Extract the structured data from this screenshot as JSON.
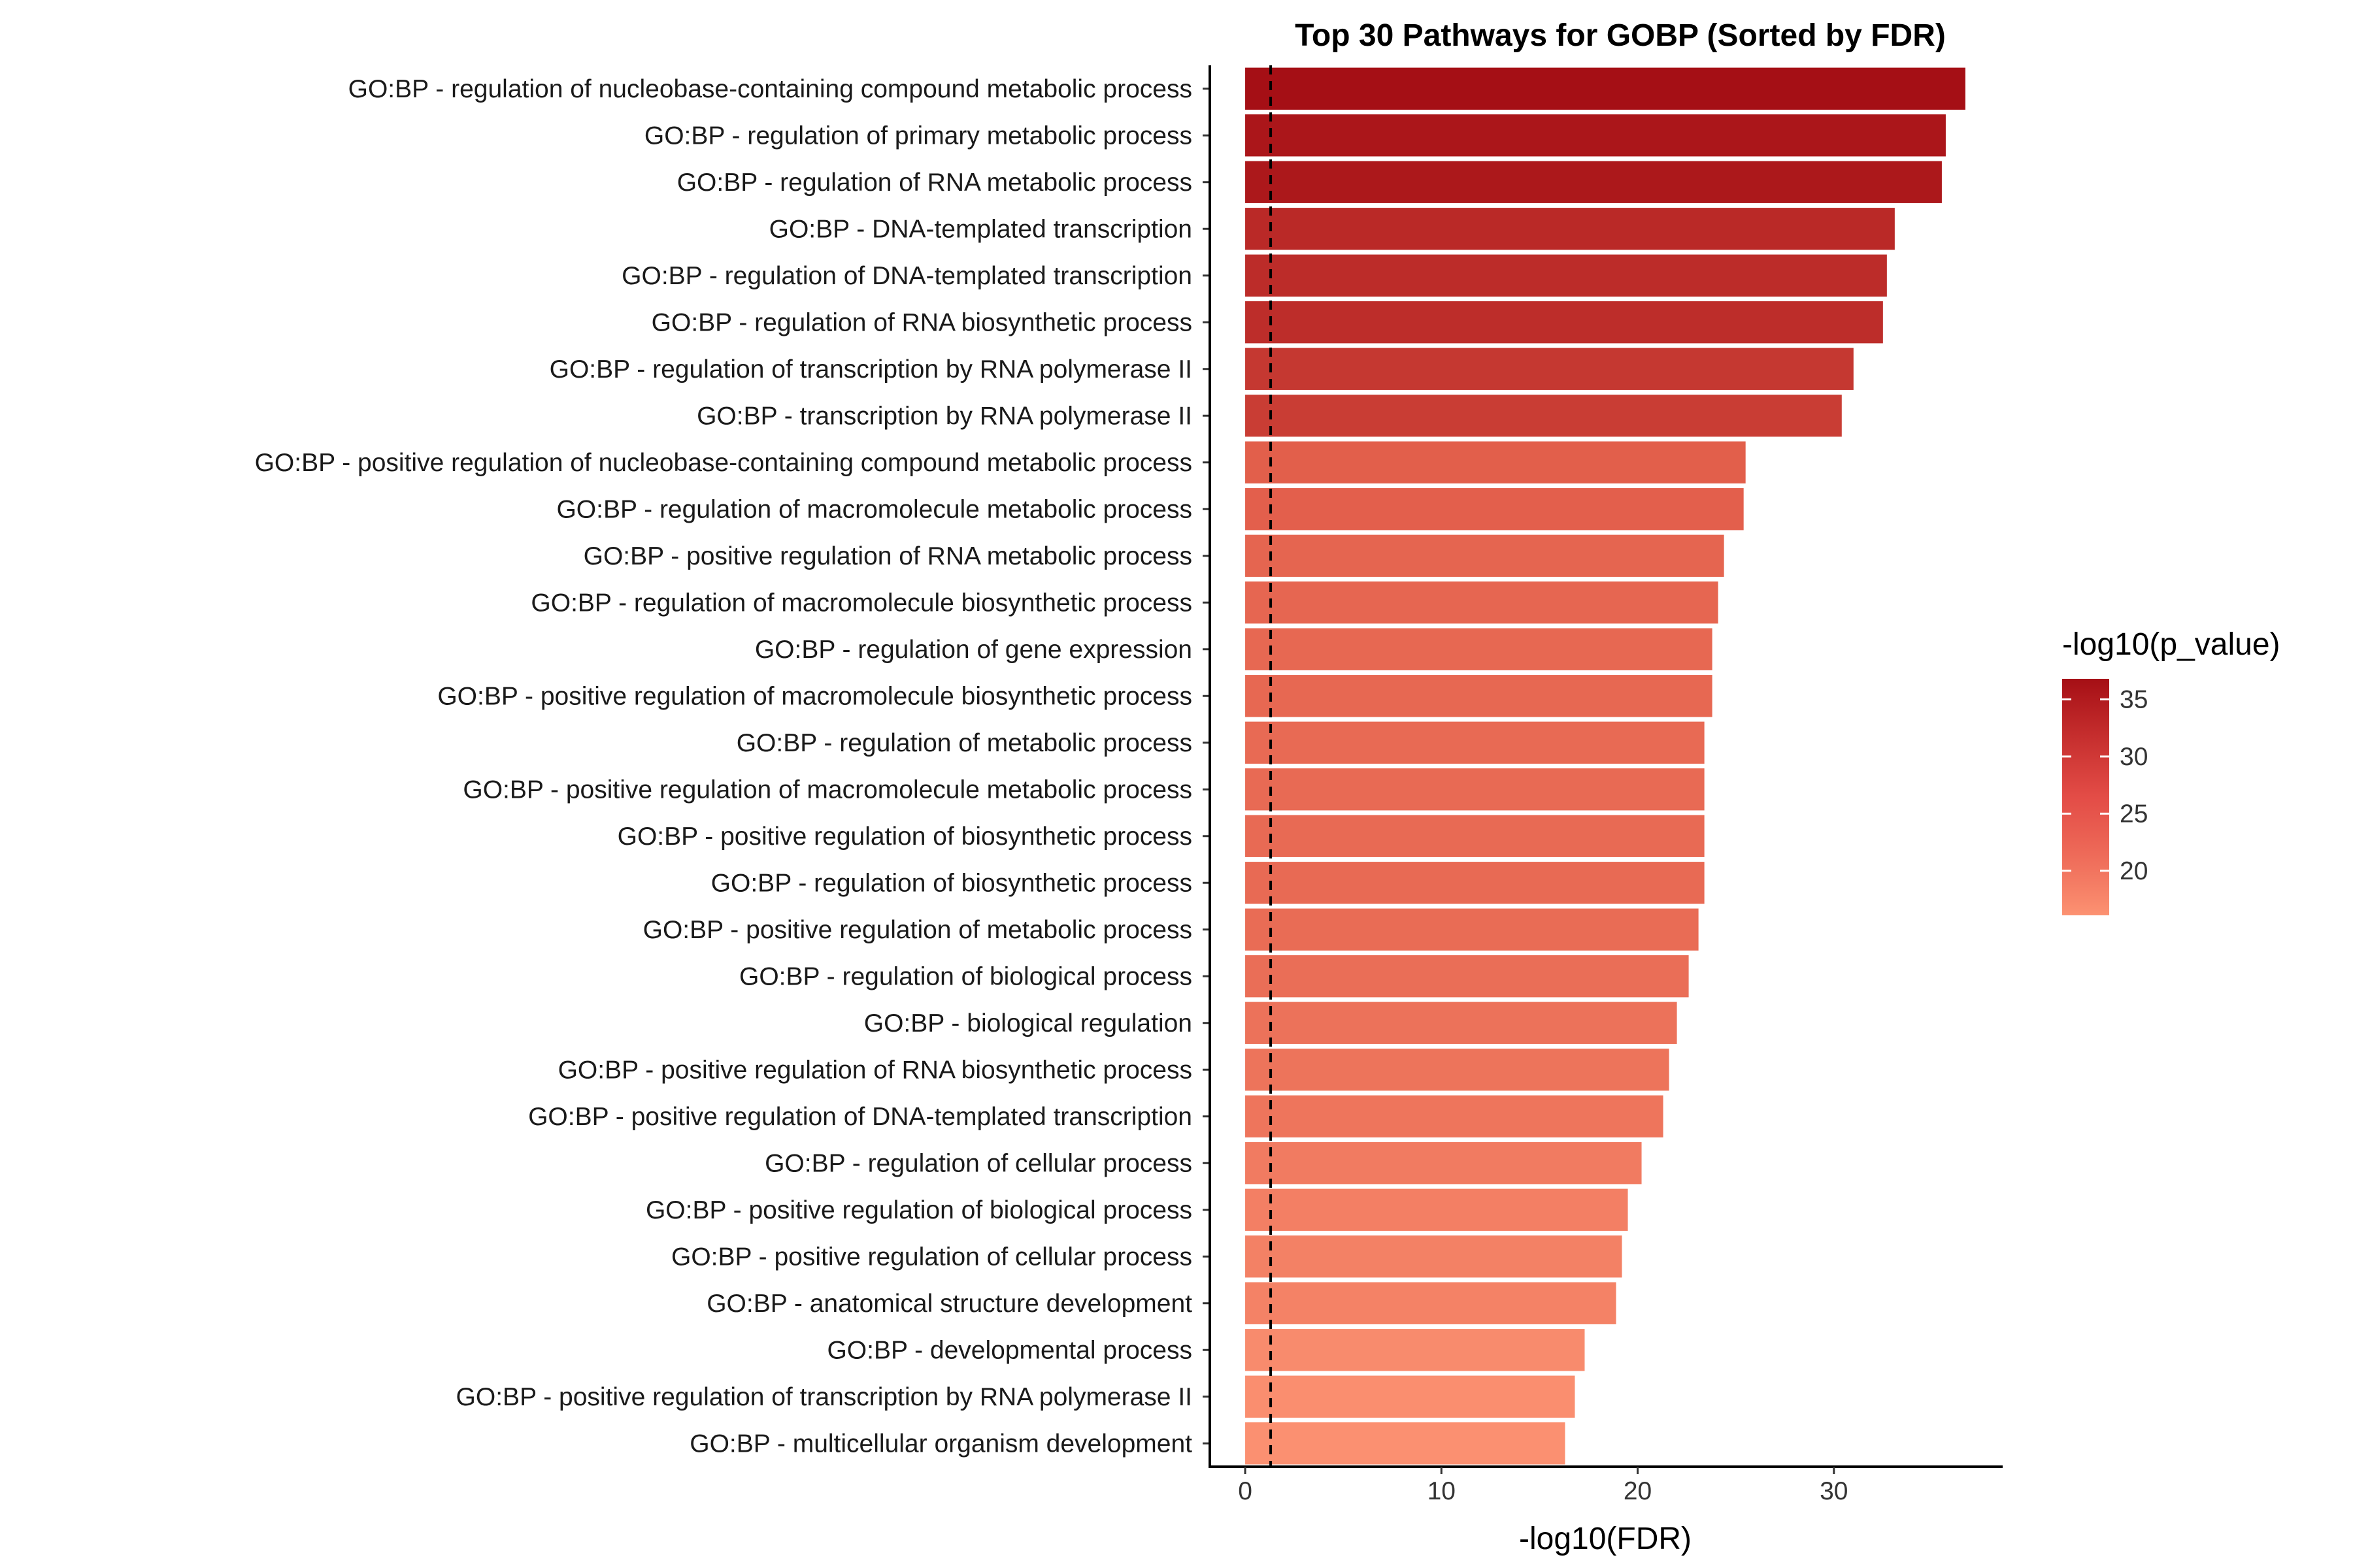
{
  "chart_data": {
    "type": "bar",
    "orientation": "horizontal",
    "title": "Top 30 Pathways for GOBP (Sorted by FDR)",
    "xlabel": "-log10(FDR)",
    "ylabel": "",
    "xlim": [
      -1.8,
      38.6
    ],
    "xticks": [
      0,
      10,
      20,
      30
    ],
    "reference_line": {
      "x": 1.3,
      "style": "dashed"
    },
    "grid": false,
    "legend": {
      "title": "-log10(p_value)",
      "placement": "right",
      "type": "colorbar",
      "range": [
        16.1,
        36.8
      ],
      "ticks": [
        20,
        25,
        30,
        35
      ],
      "colors": {
        "low": "#fc9272",
        "high": "#a50f15"
      }
    },
    "categories": [
      "GO:BP - regulation of nucleobase-containing compound metabolic process",
      "GO:BP - regulation of primary metabolic process",
      "GO:BP - regulation of RNA metabolic process",
      "GO:BP - DNA-templated transcription",
      "GO:BP - regulation of DNA-templated transcription",
      "GO:BP - regulation of RNA biosynthetic process",
      "GO:BP - regulation of transcription by RNA polymerase II",
      "GO:BP - transcription by RNA polymerase II",
      "GO:BP - positive regulation of nucleobase-containing compound metabolic process",
      "GO:BP - regulation of macromolecule metabolic process",
      "GO:BP - positive regulation of RNA metabolic process",
      "GO:BP - regulation of macromolecule biosynthetic process",
      "GO:BP - regulation of gene expression",
      "GO:BP - positive regulation of macromolecule biosynthetic process",
      "GO:BP - regulation of metabolic process",
      "GO:BP - positive regulation of macromolecule metabolic process",
      "GO:BP - positive regulation of biosynthetic process",
      "GO:BP - regulation of biosynthetic process",
      "GO:BP - positive regulation of metabolic process",
      "GO:BP - regulation of biological process",
      "GO:BP - biological regulation",
      "GO:BP - positive regulation of RNA biosynthetic process",
      "GO:BP - positive regulation of DNA-templated transcription",
      "GO:BP - regulation of cellular process",
      "GO:BP - positive regulation of biological process",
      "GO:BP - positive regulation of cellular process",
      "GO:BP - anatomical structure development",
      "GO:BP - developmental process",
      "GO:BP - positive regulation of transcription by RNA polymerase II",
      "GO:BP - multicellular organism development"
    ],
    "values": [
      36.7,
      35.7,
      35.5,
      33.1,
      32.7,
      32.5,
      31.0,
      30.4,
      25.5,
      25.4,
      24.4,
      24.1,
      23.8,
      23.8,
      23.4,
      23.4,
      23.4,
      23.4,
      23.1,
      22.6,
      22.0,
      21.6,
      21.3,
      20.2,
      19.5,
      19.2,
      18.9,
      17.3,
      16.8,
      16.3
    ],
    "color_values": [
      36.8,
      35.8,
      35.6,
      33.2,
      32.8,
      32.6,
      31.1,
      30.5,
      25.6,
      25.5,
      24.5,
      24.2,
      23.9,
      23.9,
      23.5,
      23.5,
      23.5,
      23.5,
      23.2,
      22.7,
      22.1,
      21.7,
      21.4,
      20.3,
      19.6,
      19.3,
      19.0,
      17.4,
      16.9,
      16.4
    ]
  }
}
